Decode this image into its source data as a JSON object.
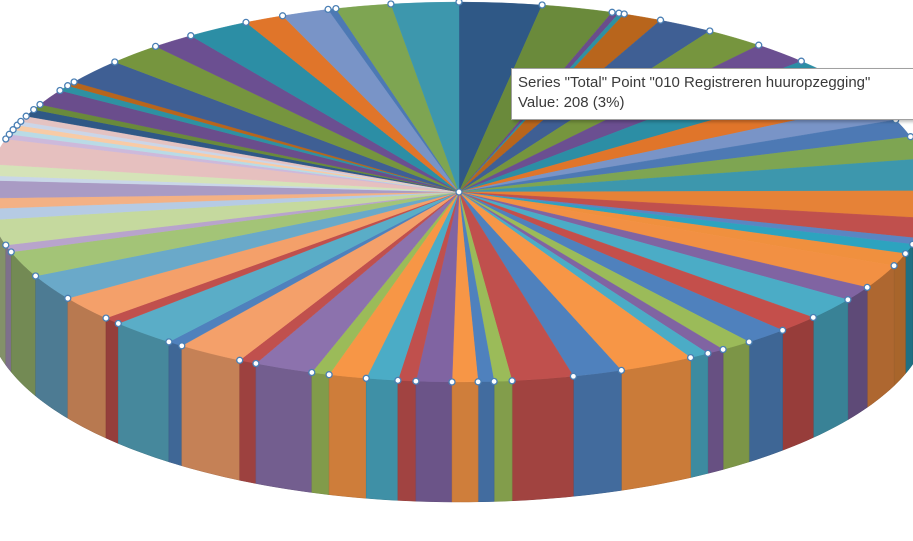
{
  "tooltip": {
    "line1": "Series \"Total\" Point \"010 Registreren huuropzegging\"",
    "line2": "Value: 208 (3%)"
  },
  "chart_data": {
    "type": "pie",
    "style": "3d",
    "series": [
      {
        "name": "Total",
        "values": [
          208,
          180,
          18,
          14,
          98,
          140,
          150,
          145,
          170,
          150,
          115,
          110,
          140,
          200,
          170,
          125,
          40,
          60,
          80,
          150,
          90,
          140,
          110,
          110,
          80,
          45,
          50,
          190,
          125,
          155,
          45,
          40,
          65,
          90,
          45,
          80,
          95,
          45,
          150,
          45,
          170,
          40,
          170,
          45,
          155,
          160,
          160,
          45,
          160,
          70,
          65,
          110,
          30,
          70,
          160,
          30,
          30,
          30,
          25,
          35,
          45,
          35,
          100,
          35,
          28,
          160,
          140,
          110,
          160,
          100,
          120,
          20,
          140,
          170
        ],
        "colors": [
          "#2f5886",
          "#6a8a3b",
          "#6a4d8c",
          "#2e91a2",
          "#b8651c",
          "#3f5f94",
          "#76953e",
          "#6b4f91",
          "#2c8ea5",
          "#e0752a",
          "#7994c7",
          "#4d79b4",
          "#7ea552",
          "#3d97ad",
          "#e68237",
          "#c0504d",
          "#5b85c2",
          "#2da3bf",
          "#f0903e",
          "#f29043",
          "#8064a2",
          "#4bacc6",
          "#c44f4b",
          "#4f81bd",
          "#9bbb59",
          "#8064a2",
          "#4bacc6",
          "#f79646",
          "#4f81bd",
          "#c0504d",
          "#9bbb59",
          "#4f81bd",
          "#f79646",
          "#8064a2",
          "#c0504d",
          "#4bacc6",
          "#f79646",
          "#9bbb59",
          "#8c72ad",
          "#c0504d",
          "#f4a06a",
          "#4f81bd",
          "#5aadc7",
          "#c0504d",
          "#f4a06a",
          "#6aa9c9",
          "#a3c477",
          "#b8a4cc",
          "#c5d99e",
          "#b6cbe4",
          "#f3b185",
          "#a99bc4",
          "#c9d7e8",
          "#d5e3b8",
          "#e6c0bf",
          "#cdb9db",
          "#b9dbe6",
          "#f8cba6",
          "#cbd6e8",
          "#e4c3c2",
          "#2f5886",
          "#6a8a3b",
          "#6a4d8c",
          "#2e91a2",
          "#b8651c",
          "#3f5f94",
          "#76953e",
          "#6b4f91",
          "#2c8ea5",
          "#e0752a",
          "#7994c7",
          "#4d79b4",
          "#7ea552",
          "#3d97ad"
        ]
      }
    ],
    "highlighted_point": {
      "label": "010 Registreren huuropzegging",
      "value": 208,
      "percent": "3%"
    }
  }
}
